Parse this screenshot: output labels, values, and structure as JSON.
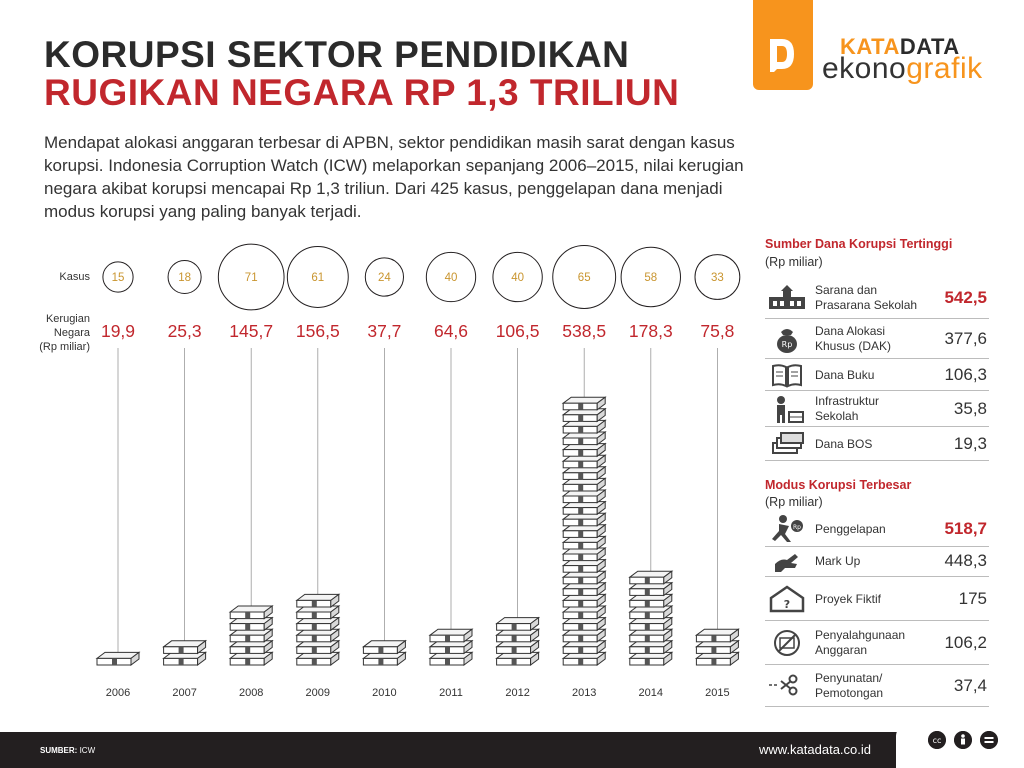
{
  "header": {
    "title_line1": "KORUPSI SEKTOR PENDIDIKAN",
    "title_line2": "RUGIKAN NEGARA RP 1,3 TRILIUN",
    "lead": "Mendapat alokasi anggaran terbesar di APBN, sektor pendidikan masih sarat dengan kasus korupsi. Indonesia Corruption Watch (ICW) melaporkan sepanjang 2006–2015, nilai kerugian negara akibat korupsi mencapai Rp 1,3 triliun. Dari 425 kasus, penggelapan dana menjadi modus korupsi yang paling banyak terjadi."
  },
  "brand": {
    "kata": "KATA",
    "data": "DATA",
    "ekono": "ekono",
    "grafik": "grafik"
  },
  "labels": {
    "kasus": "Kasus",
    "kerugian_l1": "Kerugian",
    "kerugian_l2": "Negara",
    "kerugian_l3": "(Rp miliar)"
  },
  "chart_data": {
    "type": "bar",
    "categories": [
      "2006",
      "2007",
      "2008",
      "2009",
      "2010",
      "2011",
      "2012",
      "2013",
      "2014",
      "2015"
    ],
    "series": [
      {
        "name": "Kasus",
        "values": [
          15,
          18,
          71,
          61,
          24,
          40,
          40,
          65,
          58,
          33
        ]
      },
      {
        "name": "Kerugian Negara (Rp miliar)",
        "values": [
          19.9,
          25.3,
          145.7,
          156.5,
          37.7,
          64.6,
          106.5,
          538.5,
          178.3,
          75.8
        ]
      }
    ],
    "value_labels": [
      "19,9",
      "25,3",
      "145,7",
      "156,5",
      "37,7",
      "64,6",
      "106,5",
      "538,5",
      "178,3",
      "75,8"
    ],
    "stack_levels": [
      1,
      2,
      5,
      6,
      2,
      3,
      4,
      23,
      8,
      3
    ],
    "colors": {
      "kasus_circle": "#231f20",
      "kasus_text": "#c9952f",
      "kerugian": "#c1272d",
      "stack": "#ffffff"
    }
  },
  "panel_sumber": {
    "title": "Sumber Dana Korupsi Tertinggi",
    "subtitle": "(Rp miliar)",
    "items": [
      {
        "icon": "school-building-icon",
        "label_l1": "Sarana dan",
        "label_l2": "Prasarana Sekolah",
        "value": "542,5",
        "highlight": true
      },
      {
        "icon": "money-bag-icon",
        "label_l1": "Dana Alokasi",
        "label_l2": "Khusus (DAK)",
        "value": "377,6",
        "highlight": false
      },
      {
        "icon": "book-icon",
        "label_l1": "Dana Buku",
        "label_l2": "",
        "value": "106,3",
        "highlight": false
      },
      {
        "icon": "construction-worker-icon",
        "label_l1": "Infrastruktur",
        "label_l2": "Sekolah",
        "value": "35,8",
        "highlight": false
      },
      {
        "icon": "money-stack-icon",
        "label_l1": "Dana BOS",
        "label_l2": "",
        "value": "19,3",
        "highlight": false
      }
    ]
  },
  "panel_modus": {
    "title": "Modus Korupsi Terbesar",
    "subtitle": "(Rp miliar)",
    "items": [
      {
        "icon": "running-thief-icon",
        "label_l1": "Penggelapan",
        "label_l2": "",
        "value": "518,7",
        "highlight": true
      },
      {
        "icon": "hand-up-icon",
        "label_l1": "Mark Up",
        "label_l2": "",
        "value": "448,3",
        "highlight": false
      },
      {
        "icon": "fake-house-icon",
        "label_l1": "Proyek Fiktif",
        "label_l2": "",
        "value": "175",
        "highlight": false
      },
      {
        "icon": "misuse-budget-icon",
        "label_l1": "Penyalahgunaan",
        "label_l2": "Anggaran",
        "value": "106,2",
        "highlight": false
      },
      {
        "icon": "scissors-icon",
        "label_l1": "Penyunatan/",
        "label_l2": "Pemotongan",
        "value": "37,4",
        "highlight": false
      }
    ]
  },
  "footer": {
    "source_label": "SUMBER:",
    "source_value": "ICW",
    "url": "www.katadata.co.id"
  }
}
